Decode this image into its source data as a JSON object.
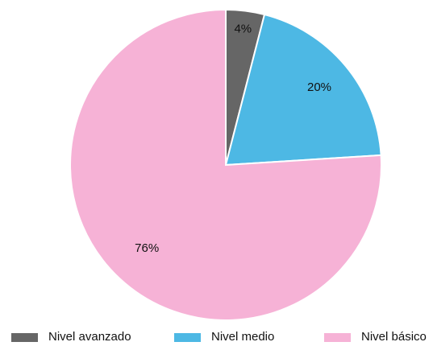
{
  "chart_data": {
    "type": "pie",
    "title": "",
    "slices": [
      {
        "name": "Nivel avanzado",
        "value": 4,
        "label": "4%",
        "color": "#666666"
      },
      {
        "name": "Nivel medio",
        "value": 20,
        "label": "20%",
        "color": "#4db8e4"
      },
      {
        "name": "Nivel básico",
        "value": 76,
        "label": "76%",
        "color": "#f6b2d6"
      }
    ],
    "legend": {
      "position": "bottom",
      "items": [
        "Nivel avanzado",
        "Nivel medio",
        "Nivel básico"
      ]
    }
  }
}
